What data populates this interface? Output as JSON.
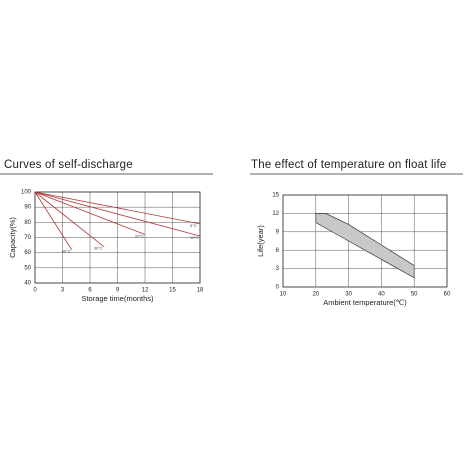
{
  "chart_data": [
    {
      "type": "line",
      "title": "Curves of self-discharge",
      "x_label": "Storage time(months)",
      "y_label": "Capacity(%)",
      "xlim": [
        0,
        18
      ],
      "xticks": [
        0,
        3,
        6,
        9,
        12,
        15,
        18
      ],
      "ylim": [
        40,
        100
      ],
      "yticks": [
        40,
        50,
        60,
        70,
        80,
        90,
        100
      ],
      "grid": true,
      "series": [
        {
          "name": "40°C",
          "color": "#b23a3a",
          "x": [
            0,
            4
          ],
          "values": [
            100,
            62
          ]
        },
        {
          "name": "30°C",
          "color": "#b23a3a",
          "x": [
            0,
            7.5
          ],
          "values": [
            100,
            64
          ]
        },
        {
          "name": "20°C",
          "color": "#b23a3a",
          "x": [
            0,
            12
          ],
          "values": [
            100,
            72
          ]
        },
        {
          "name": "10°C",
          "color": "#b23a3a",
          "x": [
            0,
            18
          ],
          "values": [
            100,
            71
          ]
        },
        {
          "name": "5°C",
          "color": "#b23a3a",
          "x": [
            0,
            18
          ],
          "values": [
            100,
            79
          ]
        }
      ]
    },
    {
      "type": "band",
      "title": "The effect of temperature on float life",
      "x_label": "Ambient temperature(℃)",
      "y_label": "Life(year)",
      "xlim": [
        10,
        60
      ],
      "xticks": [
        10,
        20,
        30,
        40,
        50,
        60
      ],
      "ylim": [
        0,
        15
      ],
      "yticks": [
        0,
        3,
        6,
        9,
        12,
        15
      ],
      "grid": true,
      "color": "#c8c8c8",
      "x": [
        20,
        23,
        30,
        50
      ],
      "upper": [
        12,
        12,
        10.2,
        3.5
      ],
      "lower": [
        10.5,
        9.6,
        7.5,
        1.5
      ]
    }
  ]
}
